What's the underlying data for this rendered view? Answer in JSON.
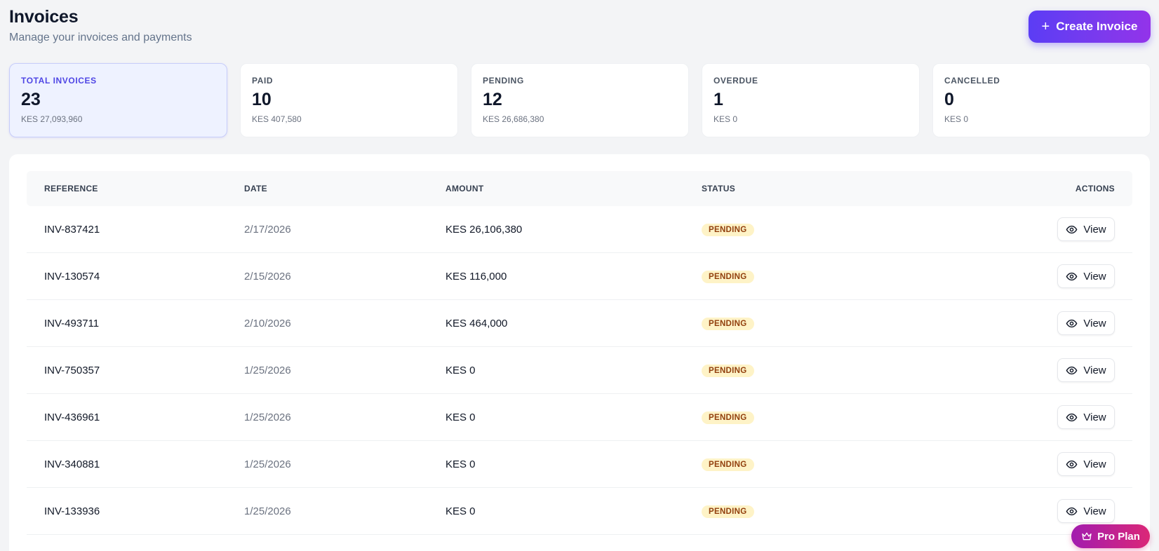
{
  "header": {
    "title": "Invoices",
    "subtitle": "Manage your invoices and payments",
    "create_label": "Create Invoice",
    "create_icon": "plus-icon"
  },
  "stats": [
    {
      "label": "TOTAL INVOICES",
      "value": "23",
      "sub": "KES 27,093,960"
    },
    {
      "label": "PAID",
      "value": "10",
      "sub": "KES 407,580"
    },
    {
      "label": "PENDING",
      "value": "12",
      "sub": "KES 26,686,380"
    },
    {
      "label": "OVERDUE",
      "value": "1",
      "sub": "KES 0"
    },
    {
      "label": "CANCELLED",
      "value": "0",
      "sub": "KES 0"
    }
  ],
  "table": {
    "columns": {
      "reference": "REFERENCE",
      "date": "DATE",
      "amount": "AMOUNT",
      "status": "STATUS",
      "actions": "ACTIONS"
    },
    "view_label": "View",
    "rows": [
      {
        "reference": "INV-837421",
        "date": "2/17/2026",
        "amount": "KES 26,106,380",
        "status": "PENDING"
      },
      {
        "reference": "INV-130574",
        "date": "2/15/2026",
        "amount": "KES 116,000",
        "status": "PENDING"
      },
      {
        "reference": "INV-493711",
        "date": "2/10/2026",
        "amount": "KES 464,000",
        "status": "PENDING"
      },
      {
        "reference": "INV-750357",
        "date": "1/25/2026",
        "amount": "KES 0",
        "status": "PENDING"
      },
      {
        "reference": "INV-436961",
        "date": "1/25/2026",
        "amount": "KES 0",
        "status": "PENDING"
      },
      {
        "reference": "INV-340881",
        "date": "1/25/2026",
        "amount": "KES 0",
        "status": "PENDING"
      },
      {
        "reference": "INV-133936",
        "date": "1/25/2026",
        "amount": "KES 0",
        "status": "PENDING"
      }
    ]
  },
  "plan_badge": {
    "label": "Pro Plan",
    "icon": "crown-icon"
  },
  "colors": {
    "accent": "#5b3df5",
    "pending_bg": "#fef3c7",
    "pending_text": "#92400e",
    "plan_badge": "#db2777"
  }
}
